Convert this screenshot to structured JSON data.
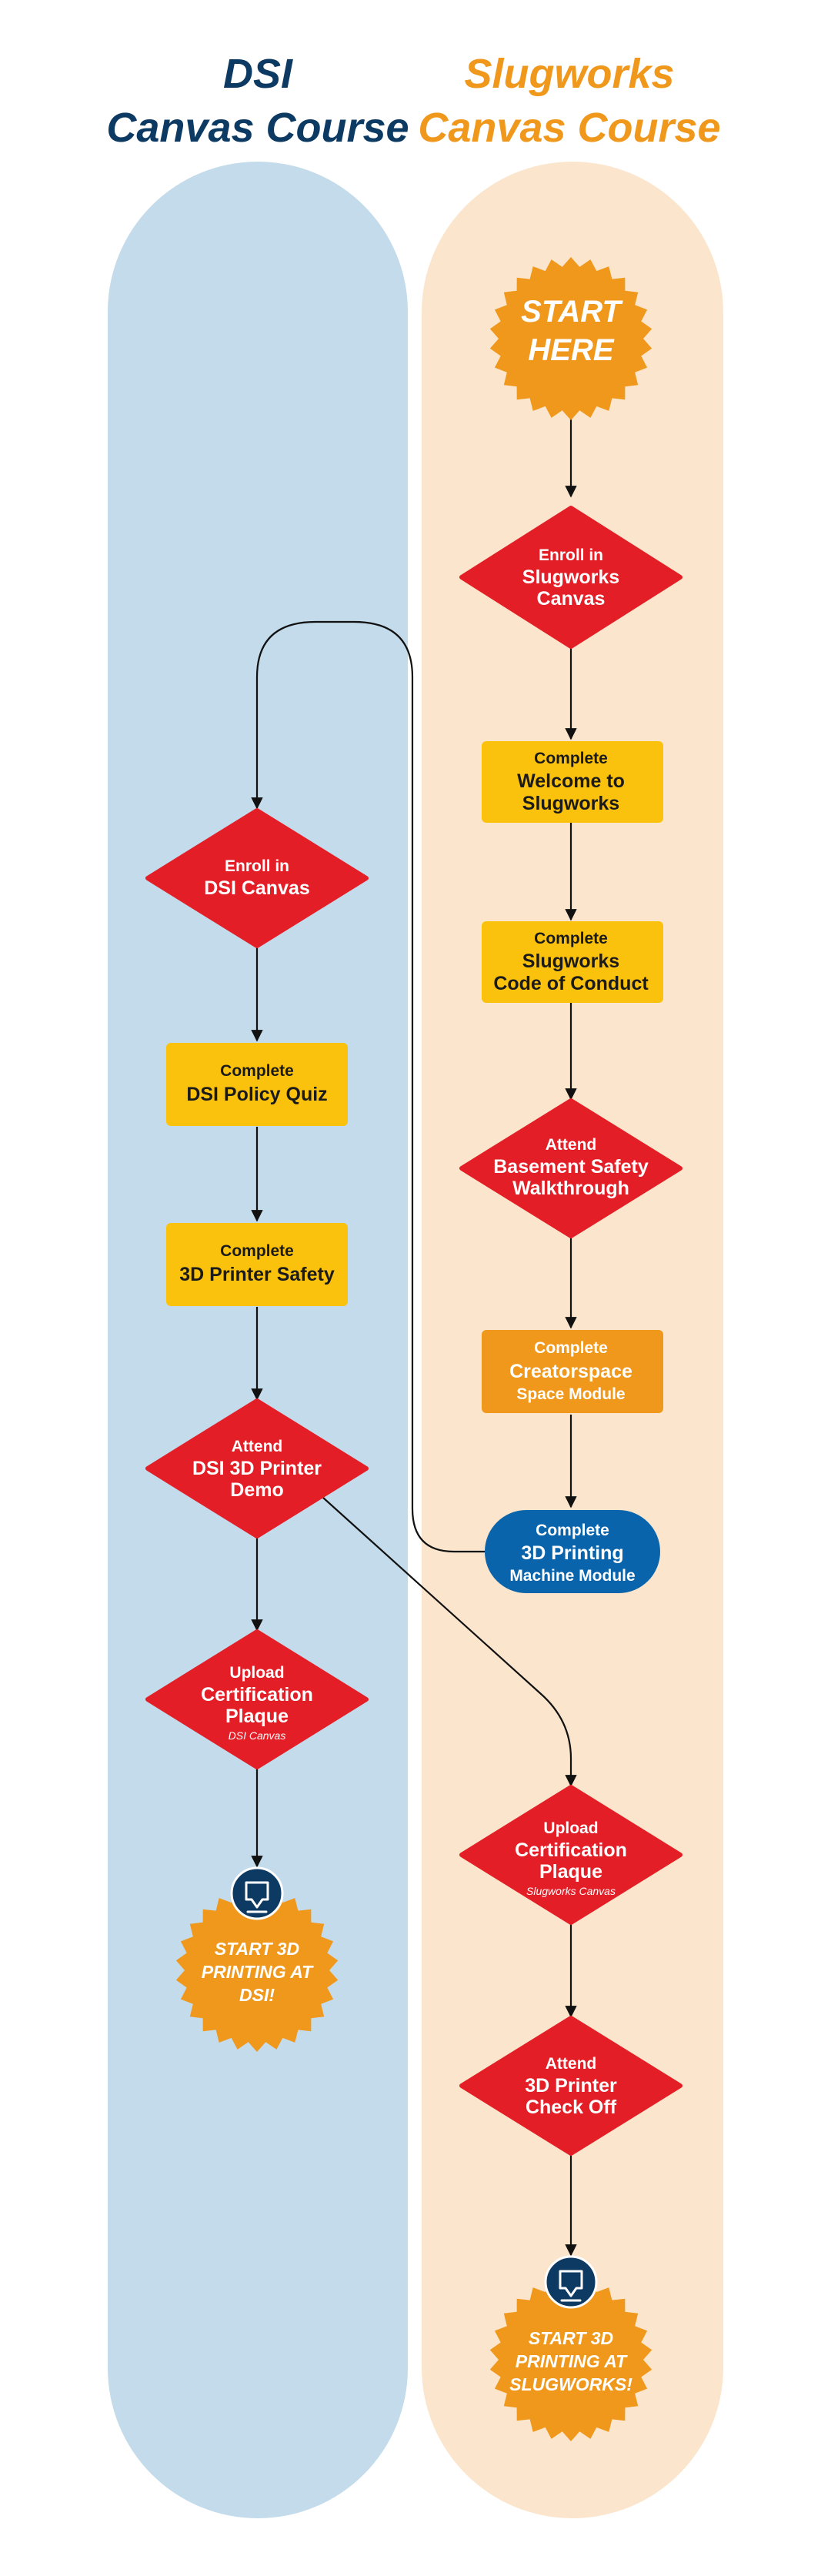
{
  "columns": {
    "dsi": {
      "title_line1": "DSI",
      "title_line2": "Canvas Course",
      "color": "#0d3a63",
      "lane_color": "#c3dbea"
    },
    "slugworks": {
      "title_line1": "Slugworks",
      "title_line2": "Canvas Course",
      "color": "#f0981c",
      "lane_color": "#fbe6cd"
    }
  },
  "colors": {
    "diamond": "#e41e26",
    "rect_yellow": "#fbc20d",
    "rect_orange": "#f0981c",
    "pill_blue": "#0a64ab",
    "badge": "#f0981c",
    "icon_circle": "#0d3a63"
  },
  "nodes": {
    "start": {
      "line1": "START",
      "line2": "HERE"
    },
    "s_enroll": {
      "l1": "Enroll in",
      "l2": "Slugworks",
      "l3": "Canvas"
    },
    "s_welcome": {
      "l1": "Complete",
      "l2": "Welcome to",
      "l3": "Slugworks"
    },
    "s_code": {
      "l1": "Complete",
      "l2": "Slugworks",
      "l3": "Code of Conduct"
    },
    "s_basement": {
      "l1": "Attend",
      "l2": "Basement Safety",
      "l3": "Walkthrough"
    },
    "s_creator": {
      "l1": "Complete",
      "l2": "Creatorspace",
      "l3": "Space Module"
    },
    "s_machine": {
      "l1": "Complete",
      "l2": "3D Printing",
      "l3": "Machine Module"
    },
    "d_enroll": {
      "l1": "Enroll in",
      "l2": "DSI Canvas"
    },
    "d_policy": {
      "l1": "Complete",
      "l2": "DSI Policy Quiz"
    },
    "d_safety": {
      "l1": "Complete",
      "l2": "3D Printer Safety"
    },
    "d_demo": {
      "l1": "Attend",
      "l2": "DSI 3D Printer",
      "l3": "Demo"
    },
    "d_upload": {
      "l1": "Upload",
      "l2": "Certification",
      "l3": "Plaque",
      "l4": "DSI Canvas"
    },
    "d_end": {
      "l1": "START 3D",
      "l2": "PRINTING AT",
      "l3": "DSI!"
    },
    "s_upload": {
      "l1": "Upload",
      "l2": "Certification",
      "l3": "Plaque",
      "l4": "Slugworks Canvas"
    },
    "s_checkoff": {
      "l1": "Attend",
      "l2": "3D Printer",
      "l3": "Check Off"
    },
    "s_end": {
      "l1": "START 3D",
      "l2": "PRINTING AT",
      "l3": "SLUGWORKS!"
    }
  },
  "icons": {
    "end_badge_icon": "3d-printer-icon"
  }
}
